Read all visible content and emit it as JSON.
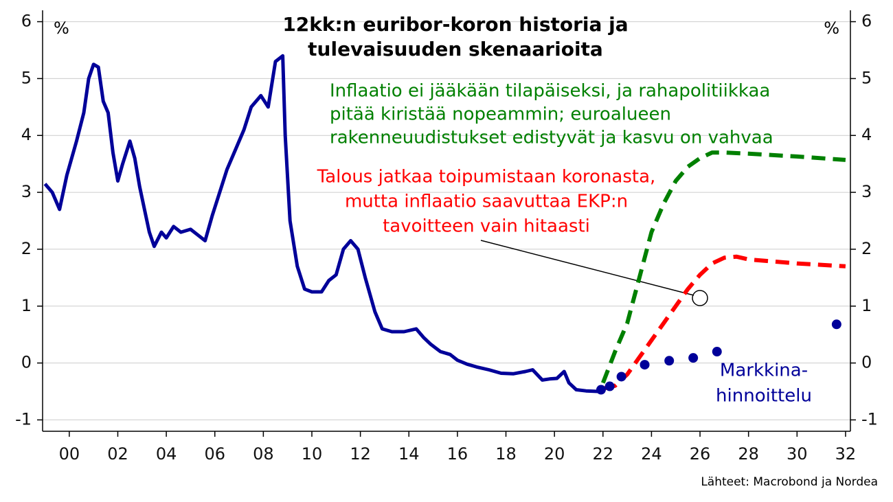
{
  "chart_data": {
    "type": "line",
    "title": [
      "12kk:n euribor-koron historia ja",
      "tulevaisuuden skenaarioita"
    ],
    "ylabel": "%",
    "y2label": "%",
    "source": "Lähteet: Macrobond ja Nordea",
    "xlim": [
      1998.9,
      2032.2
    ],
    "xticks": [
      {
        "value": 2000,
        "label": "00"
      },
      {
        "value": 2002,
        "label": "02"
      },
      {
        "value": 2004,
        "label": "04"
      },
      {
        "value": 2006,
        "label": "06"
      },
      {
        "value": 2008,
        "label": "08"
      },
      {
        "value": 2010,
        "label": "10"
      },
      {
        "value": 2012,
        "label": "12"
      },
      {
        "value": 2014,
        "label": "14"
      },
      {
        "value": 2016,
        "label": "16"
      },
      {
        "value": 2018,
        "label": "18"
      },
      {
        "value": 2020,
        "label": "20"
      },
      {
        "value": 2022,
        "label": "22"
      },
      {
        "value": 2024,
        "label": "24"
      },
      {
        "value": 2026,
        "label": "26"
      },
      {
        "value": 2028,
        "label": "28"
      },
      {
        "value": 2030,
        "label": "30"
      },
      {
        "value": 2032,
        "label": "32"
      }
    ],
    "ylim": [
      -1.2,
      6.2
    ],
    "yticks": [
      -1,
      0,
      1,
      2,
      3,
      4,
      5,
      6
    ],
    "y2lim": [
      -1.2,
      6.2
    ],
    "y2ticks": [
      -1,
      0,
      1,
      2,
      3,
      4,
      5,
      6
    ],
    "grid": true,
    "series": [
      {
        "color": "#000099",
        "style": "solid",
        "x": [
          1999.0,
          1999.3,
          1999.6,
          1999.9,
          2000.3,
          2000.6,
          2000.8,
          2001.0,
          2001.2,
          2001.4,
          2001.6,
          2001.8,
          2002.0,
          2002.2,
          2002.5,
          2002.7,
          2002.9,
          2003.1,
          2003.3,
          2003.5,
          2003.8,
          2004.0,
          2004.3,
          2004.6,
          2005.0,
          2005.3,
          2005.6,
          2005.9,
          2006.2,
          2006.5,
          2006.8,
          2007.2,
          2007.5,
          2007.9,
          2008.2,
          2008.5,
          2008.8,
          2008.9,
          2009.1,
          2009.4,
          2009.7,
          2010.0,
          2010.4,
          2010.7,
          2011.0,
          2011.3,
          2011.6,
          2011.9,
          2012.2,
          2012.6,
          2012.9,
          2013.3,
          2013.8,
          2014.3,
          2014.6,
          2014.9,
          2015.3,
          2015.7,
          2016.0,
          2016.4,
          2016.8,
          2017.3,
          2017.8,
          2018.3,
          2018.8,
          2019.1,
          2019.5,
          2019.8,
          2020.1,
          2020.4,
          2020.6,
          2020.9,
          2021.3,
          2021.8,
          2022.0
        ],
        "values": [
          3.15,
          3.0,
          2.7,
          3.3,
          3.9,
          4.4,
          5.0,
          5.25,
          5.2,
          4.6,
          4.4,
          3.7,
          3.2,
          3.5,
          3.9,
          3.6,
          3.1,
          2.7,
          2.3,
          2.05,
          2.3,
          2.2,
          2.4,
          2.3,
          2.35,
          2.25,
          2.15,
          2.6,
          3.0,
          3.4,
          3.7,
          4.1,
          4.5,
          4.7,
          4.5,
          5.3,
          5.4,
          4.0,
          2.5,
          1.7,
          1.3,
          1.25,
          1.25,
          1.45,
          1.55,
          2.0,
          2.15,
          2.0,
          1.5,
          0.9,
          0.6,
          0.55,
          0.55,
          0.6,
          0.45,
          0.33,
          0.2,
          0.15,
          0.05,
          -0.02,
          -0.07,
          -0.12,
          -0.18,
          -0.19,
          -0.15,
          -0.12,
          -0.3,
          -0.28,
          -0.27,
          -0.15,
          -0.35,
          -0.47,
          -0.49,
          -0.5,
          -0.48
        ]
      },
      {
        "color": "#008000",
        "style": "dashed",
        "x": [
          2022.0,
          2022.5,
          2023.0,
          2023.5,
          2024.0,
          2024.5,
          2025.0,
          2025.5,
          2026.0,
          2026.5,
          2027.0,
          2028.0,
          2030.0,
          2032.0
        ],
        "values": [
          -0.35,
          0.2,
          0.7,
          1.5,
          2.3,
          2.8,
          3.2,
          3.45,
          3.6,
          3.7,
          3.7,
          3.68,
          3.63,
          3.57
        ]
      },
      {
        "color": "#ff0000",
        "style": "dashed",
        "x": [
          2022.0,
          2022.5,
          2023.0,
          2023.5,
          2024.0,
          2024.5,
          2025.0,
          2025.5,
          2026.0,
          2026.5,
          2027.0,
          2027.5,
          2028.0,
          2030.0,
          2032.0
        ],
        "values": [
          -0.45,
          -0.4,
          -0.2,
          0.1,
          0.4,
          0.7,
          1.0,
          1.3,
          1.55,
          1.75,
          1.85,
          1.87,
          1.82,
          1.75,
          1.7
        ]
      },
      {
        "color": "#000099",
        "style": "dots",
        "x": [
          2021.92,
          2022.28,
          2022.76,
          2023.72,
          2024.73,
          2025.72,
          2026.7,
          2031.63
        ],
        "values": [
          -0.47,
          -0.41,
          -0.24,
          -0.03,
          0.04,
          0.09,
          0.2,
          0.68
        ]
      }
    ],
    "annotations": [
      {
        "text": [
          "Inflaatio ei jääkään tilapäiseksi, ja rahapolitiikkaa",
          "pitää kiristää nopeammin; euroalueen",
          "rakenneuudistukset edistyvät ja kasvu on vahvaa"
        ],
        "color": "#008000"
      },
      {
        "text": [
          "Talous jatkaa toipumistaan koronasta,",
          "mutta inflaatio saavuttaa EKP:n",
          "tavoitteen vain hitaasti"
        ],
        "color": "#ff0000"
      },
      {
        "text": [
          "Markkina-",
          "hinnoittelu"
        ],
        "color": "#000099"
      }
    ]
  }
}
